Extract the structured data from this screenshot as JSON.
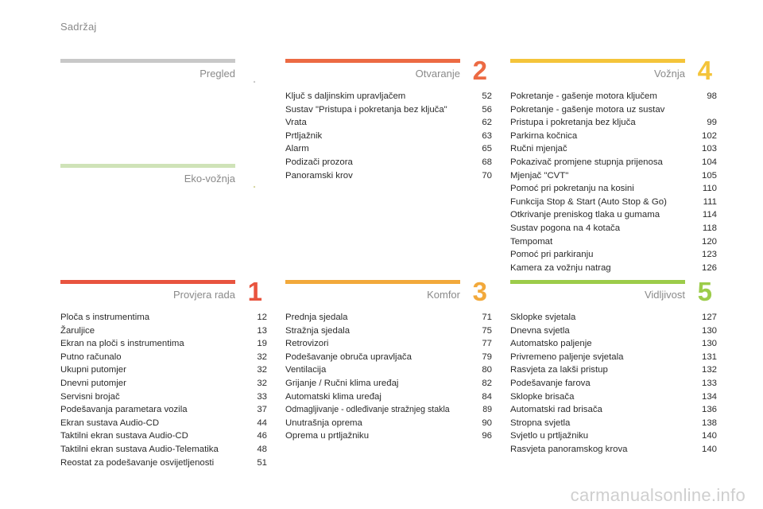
{
  "page_title": "Sadržaj",
  "watermark": "carmanualsonline.info",
  "sections": {
    "pregled": {
      "title": "Pregled",
      "marker": ".",
      "color": "#c8c8c8",
      "marker_color": "#c8c8c8"
    },
    "eko": {
      "title": "Eko-vožnja",
      "marker": ".",
      "color": "#cfe3b8",
      "marker_color": "#d6d6a0"
    },
    "otvaranje": {
      "title": "Otvaranje",
      "number": "2",
      "color": "#ec6a43",
      "items": [
        {
          "label": "Ključ s daljinskim upravljačem",
          "page": "52"
        },
        {
          "label": "Sustav \"Pristupa i pokretanja bez ključa\"",
          "page": "56"
        },
        {
          "label": "Vrata",
          "page": "62"
        },
        {
          "label": "Prtljažnik",
          "page": "63"
        },
        {
          "label": "Alarm",
          "page": "65"
        },
        {
          "label": "Podizači prozora",
          "page": "68"
        },
        {
          "label": "Panoramski krov",
          "page": "70"
        }
      ]
    },
    "voznja": {
      "title": "Vožnja",
      "number": "4",
      "color": "#f4c43a",
      "items": [
        {
          "label": "Pokretanje - gašenje motora ključem",
          "page": "98"
        },
        {
          "label": "Pokretanje - gašenje motora uz sustav Pristupa i pokretanja bez ključa",
          "page": "99",
          "two_line": true
        },
        {
          "label": "Parkirna kočnica",
          "page": "102"
        },
        {
          "label": "Ručni mjenjač",
          "page": "103"
        },
        {
          "label": "Pokazivač promjene stupnja prijenosa",
          "page": "104"
        },
        {
          "label": "Mjenjač \"CVT\"",
          "page": "105"
        },
        {
          "label": "Pomoć pri pokretanju na kosini",
          "page": "110"
        },
        {
          "label": "Funkcija Stop & Start (Auto Stop & Go)",
          "page": "111"
        },
        {
          "label": "Otkrivanje preniskog tlaka u gumama",
          "page": "114"
        },
        {
          "label": "Sustav pogona na 4 kotača",
          "page": "118"
        },
        {
          "label": "Tempomat",
          "page": "120"
        },
        {
          "label": "Pomoć pri parkiranju",
          "page": "123"
        },
        {
          "label": "Kamera za vožnju natrag",
          "page": "126"
        }
      ]
    },
    "provjera": {
      "title": "Provjera rada",
      "number": "1",
      "color": "#e8543f",
      "items": [
        {
          "label": "Ploča s instrumentima",
          "page": "12"
        },
        {
          "label": "Žaruljice",
          "page": "13"
        },
        {
          "label": "Ekran na ploči s instrumentima",
          "page": "19"
        },
        {
          "label": "Putno računalo",
          "page": "32"
        },
        {
          "label": "Ukupni putomjer",
          "page": "32"
        },
        {
          "label": "Dnevni putomjer",
          "page": "32"
        },
        {
          "label": "Servisni brojač",
          "page": "33"
        },
        {
          "label": "Podešavanja parametara vozila",
          "page": "37"
        },
        {
          "label": "Ekran sustava Audio-CD",
          "page": "44"
        },
        {
          "label": "Taktilni ekran sustava Audio-CD",
          "page": "46"
        },
        {
          "label": "Taktilni ekran sustava Audio-Telematika",
          "page": "48"
        },
        {
          "label": "Reostat za podešavanje osvijetljenosti",
          "page": "51"
        }
      ]
    },
    "komfor": {
      "title": "Komfor",
      "number": "3",
      "color": "#f2a93b",
      "items": [
        {
          "label": "Prednja sjedala",
          "page": "71"
        },
        {
          "label": "Stražnja sjedala",
          "page": "75"
        },
        {
          "label": "Retrovizori",
          "page": "77"
        },
        {
          "label": "Podešavanje obruča upravljača",
          "page": "79"
        },
        {
          "label": "Ventilacija",
          "page": "80"
        },
        {
          "label": "Grijanje / Ručni klima uređaj",
          "page": "82"
        },
        {
          "label": "Automatski klima uređaj",
          "page": "84"
        },
        {
          "label": "Odmagljivanje - odleđivanje stražnjeg stakla",
          "page": "89",
          "small": true
        },
        {
          "label": "Unutrašnja oprema",
          "page": "90"
        },
        {
          "label": "Oprema u prtljažniku",
          "page": "96"
        }
      ]
    },
    "vidljivost": {
      "title": "Vidljivost",
      "number": "5",
      "color": "#9ccc4a",
      "items": [
        {
          "label": "Sklopke svjetala",
          "page": "127"
        },
        {
          "label": "Dnevna svjetla",
          "page": "130"
        },
        {
          "label": "Automatsko paljenje",
          "page": "130"
        },
        {
          "label": "Privremeno paljenje svjetala",
          "page": "131"
        },
        {
          "label": "Rasvjeta za lakši pristup",
          "page": "132"
        },
        {
          "label": "Podešavanje farova",
          "page": "133"
        },
        {
          "label": "Sklopke brisača",
          "page": "134"
        },
        {
          "label": "Automatski rad brisača",
          "page": "136"
        },
        {
          "label": "Stropna svjetla",
          "page": "138"
        },
        {
          "label": "Svjetlo u prtljažniku",
          "page": "140"
        },
        {
          "label": "Rasvjeta panoramskog krova",
          "page": "140"
        }
      ]
    }
  }
}
